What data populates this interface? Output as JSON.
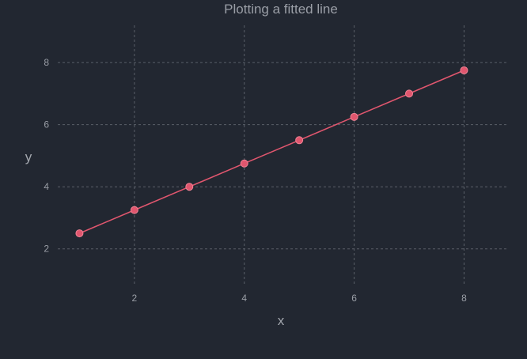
{
  "chart_data": {
    "type": "line",
    "title": "Plotting a fitted line",
    "xlabel": "x",
    "ylabel": "y",
    "xlim": [
      0.0,
      8.8
    ],
    "ylim": [
      1.0,
      9.2
    ],
    "xticks": [
      2,
      4,
      6,
      8
    ],
    "yticks": [
      2,
      4,
      6,
      8
    ],
    "grid": true,
    "colors": {
      "background": "#222731",
      "line": "#e0566e",
      "marker": "#e0566e",
      "marker_edge": "#f08496",
      "grid": "#5a5f68",
      "text": "#9a9ea6"
    },
    "series": [
      {
        "x": [
          1,
          2,
          3,
          4,
          5,
          6,
          7,
          8
        ],
        "y": [
          2.5,
          3.25,
          4.0,
          4.75,
          5.5,
          6.25,
          7.0,
          7.75
        ]
      }
    ]
  }
}
